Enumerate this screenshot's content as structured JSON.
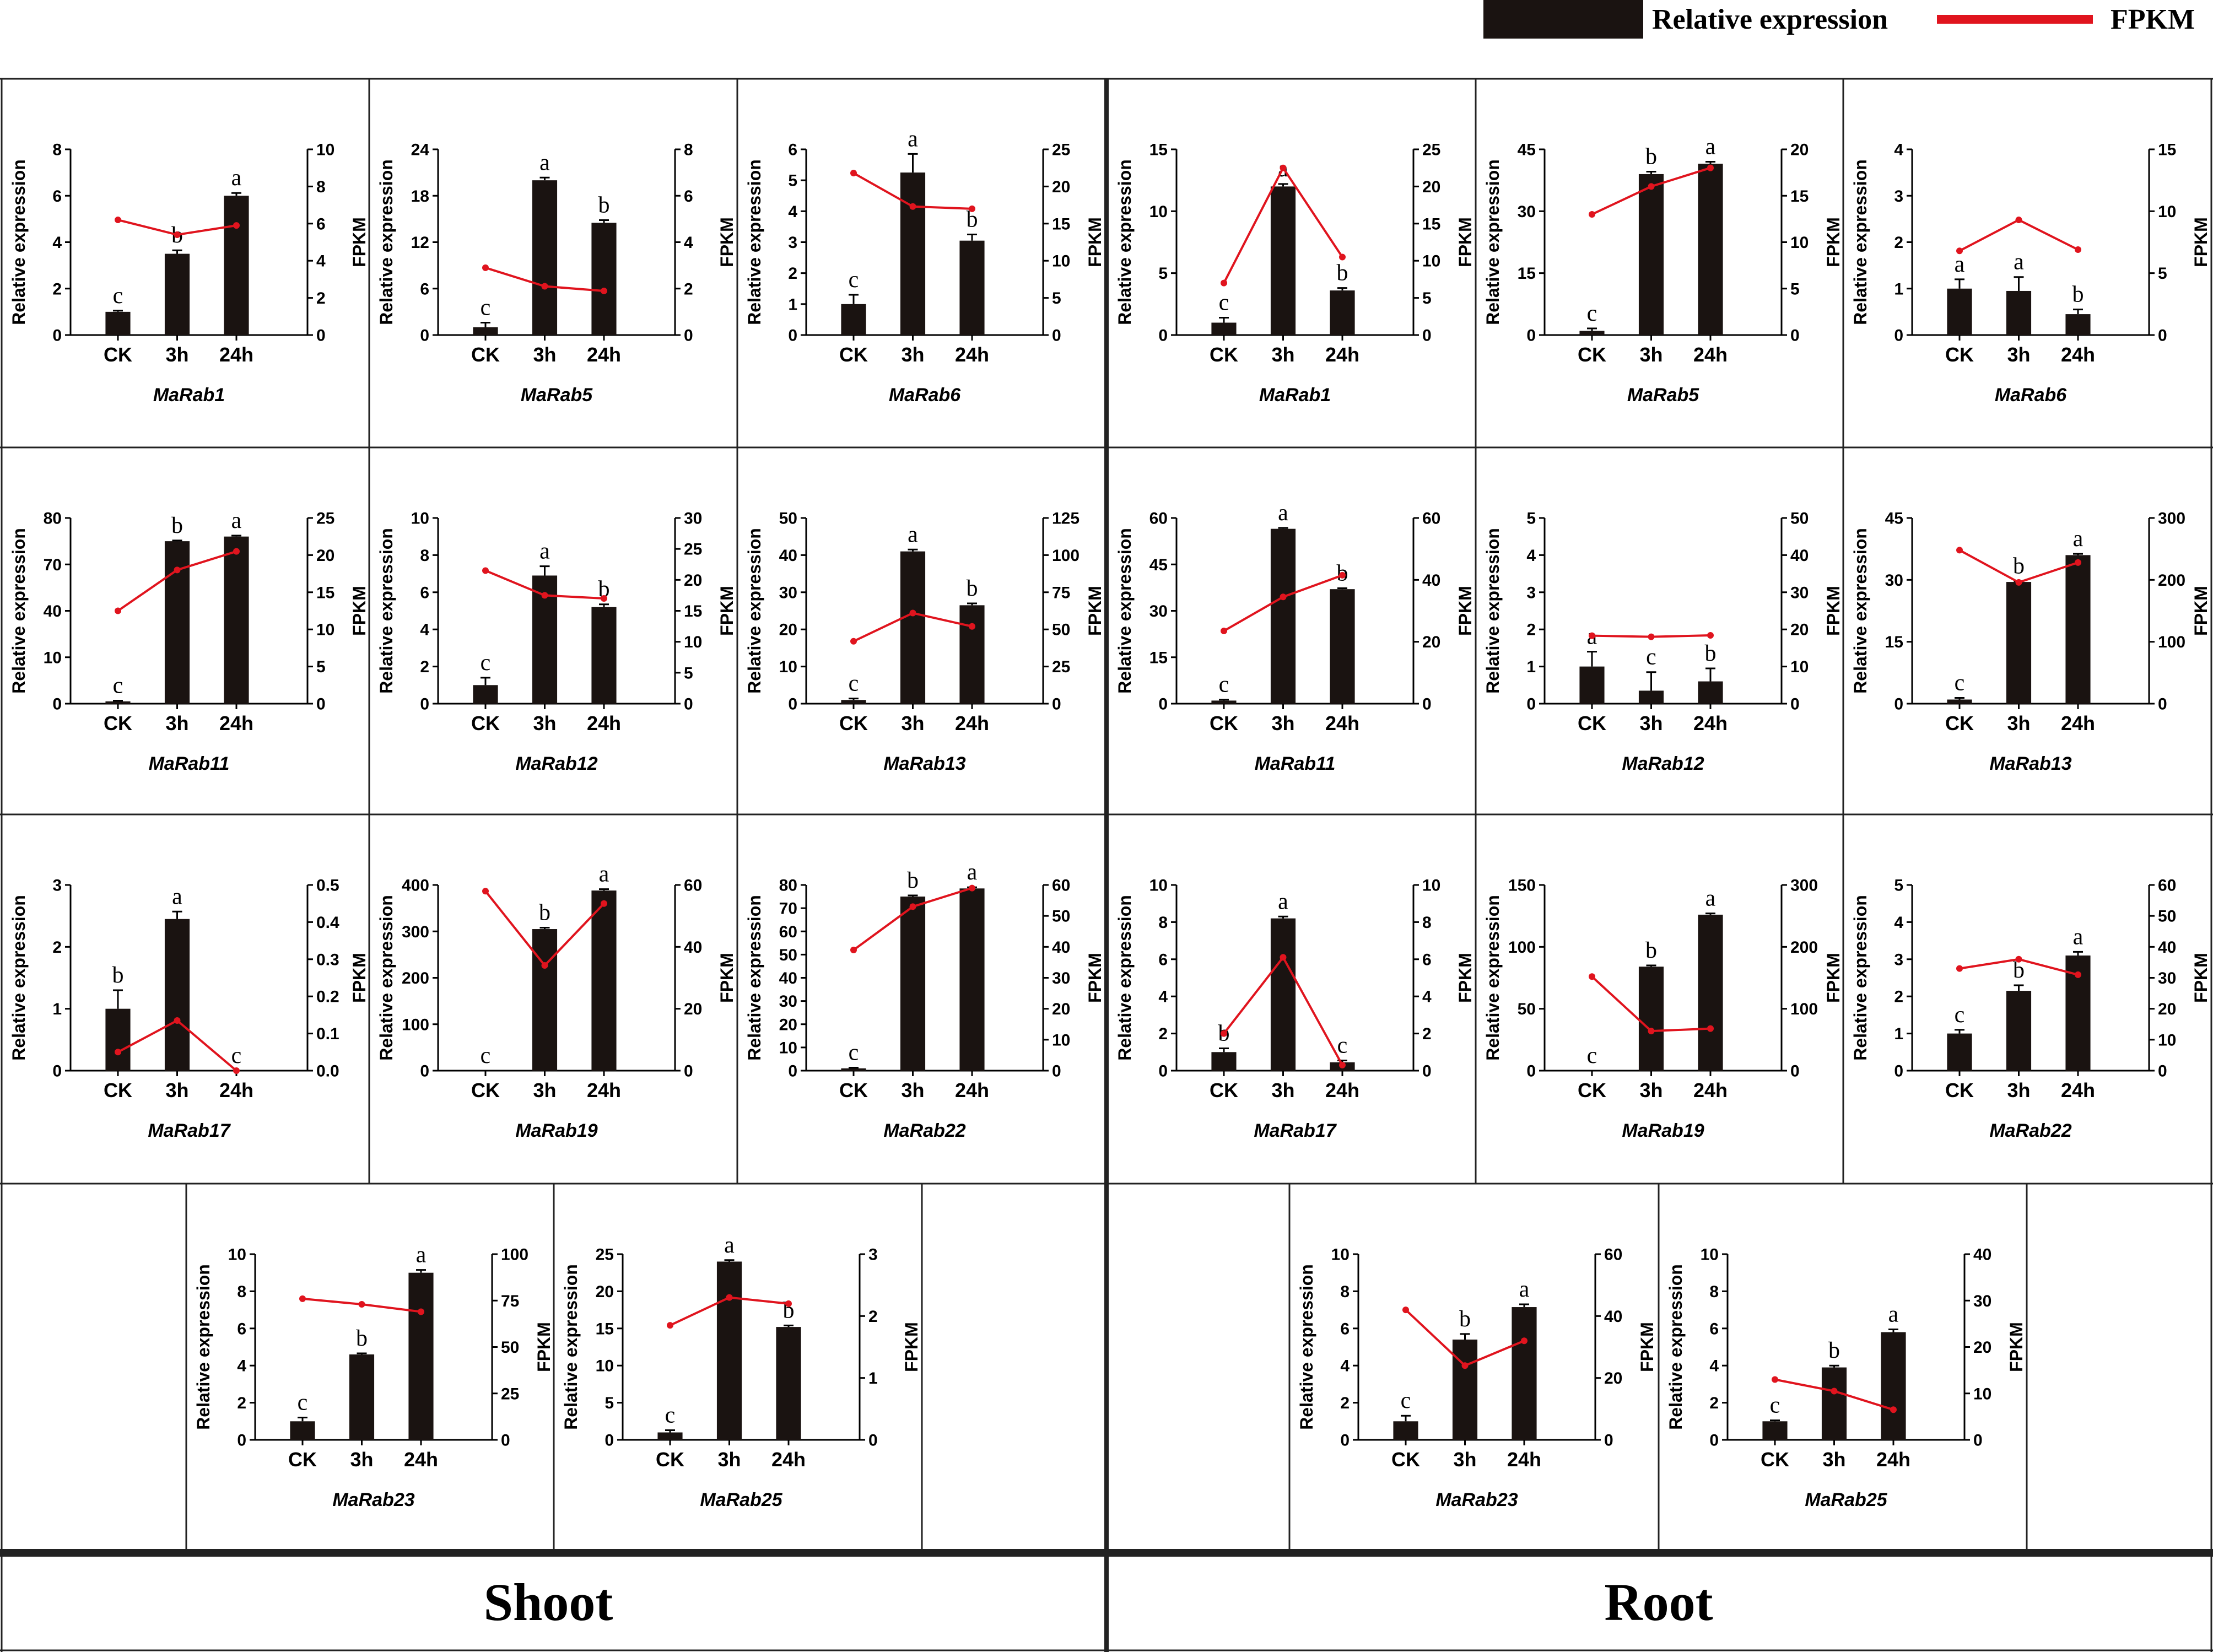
{
  "legend": {
    "relative_expression": "Relative expression",
    "fpkm": "FPKM",
    "bar_color": "#1a1311",
    "line_color": "#e0141e"
  },
  "sections": {
    "shoot": "Shoot",
    "root": "Root"
  },
  "chart_data": [
    {
      "id": "s1",
      "gene": "MaRab1",
      "tissue": "Shoot",
      "type": "bar",
      "line": "FPKM",
      "categories": [
        "CK",
        "3h",
        "24h"
      ],
      "values": [
        1.0,
        3.5,
        6.0
      ],
      "errors": [
        0.05,
        0.15,
        0.12
      ],
      "letters": [
        "c",
        "b",
        "a"
      ],
      "fpkm": [
        6.2,
        5.4,
        5.9
      ],
      "ylim": [
        0,
        8
      ],
      "yticks": [
        "0",
        "2",
        "4",
        "6",
        "8"
      ],
      "y2lim": [
        0,
        10
      ],
      "y2ticks": [
        "0",
        "2",
        "4",
        "6",
        "8",
        "10"
      ],
      "ylabel": "Relative expression",
      "y2label": "FPKM"
    },
    {
      "id": "s5",
      "gene": "MaRab5",
      "tissue": "Shoot",
      "type": "bar",
      "line": "FPKM",
      "categories": [
        "CK",
        "3h",
        "24h"
      ],
      "values": [
        1.0,
        20.0,
        14.5
      ],
      "errors": [
        0.6,
        0.35,
        0.35
      ],
      "letters": [
        "c",
        "a",
        "b"
      ],
      "fpkm": [
        2.9,
        2.1,
        1.9
      ],
      "ylim": [
        0,
        24
      ],
      "yticks": [
        "0",
        "6",
        "12",
        "18",
        "24"
      ],
      "y2lim": [
        0,
        8
      ],
      "y2ticks": [
        "0",
        "2",
        "4",
        "6",
        "8"
      ],
      "ylabel": "Relative expression",
      "y2label": "FPKM"
    },
    {
      "id": "s6",
      "gene": "MaRab6",
      "tissue": "Shoot",
      "type": "bar",
      "line": "FPKM",
      "categories": [
        "CK",
        "3h",
        "24h"
      ],
      "values": [
        1.0,
        5.25,
        3.05
      ],
      "errors": [
        0.3,
        0.6,
        0.2
      ],
      "letters": [
        "c",
        "a",
        "b"
      ],
      "fpkm": [
        21.8,
        17.3,
        17.0
      ],
      "ylim": [
        0,
        6
      ],
      "yticks": [
        "0",
        "1",
        "2",
        "3",
        "4",
        "5",
        "6"
      ],
      "y2lim": [
        0,
        25
      ],
      "y2ticks": [
        "0",
        "5",
        "10",
        "15",
        "20",
        "25"
      ],
      "ylabel": "Relative expression",
      "y2label": "FPKM"
    },
    {
      "id": "s11",
      "gene": "MaRab11",
      "tissue": "Shoot",
      "type": "bar",
      "line": "FPKM",
      "categories": [
        "CK",
        "3h",
        "24h"
      ],
      "values": [
        1.0,
        70.0,
        72.0
      ],
      "errors": [
        0.3,
        0.3,
        0.4
      ],
      "letters": [
        "c",
        "b",
        "a"
      ],
      "fpkm": [
        12.5,
        18.0,
        20.5
      ],
      "ylim": [
        0,
        80
      ],
      "yticks": [
        "0",
        "10",
        "40",
        "70",
        "80"
      ],
      "y2lim": [
        0,
        25
      ],
      "y2ticks": [
        "0",
        "5",
        "10",
        "15",
        "20",
        "25"
      ],
      "ylabel": "Relative expression",
      "y2label": "FPKM"
    },
    {
      "id": "s12",
      "gene": "MaRab12",
      "tissue": "Shoot",
      "type": "bar",
      "line": "FPKM",
      "categories": [
        "CK",
        "3h",
        "24h"
      ],
      "values": [
        1.0,
        6.9,
        5.2
      ],
      "errors": [
        0.4,
        0.5,
        0.15
      ],
      "letters": [
        "c",
        "a",
        "b"
      ],
      "fpkm": [
        21.5,
        17.5,
        17.0
      ],
      "ylim": [
        0,
        10
      ],
      "yticks": [
        "0",
        "2",
        "4",
        "6",
        "8",
        "10"
      ],
      "y2lim": [
        0,
        30
      ],
      "y2ticks": [
        "0",
        "5",
        "10",
        "15",
        "20",
        "25",
        "30"
      ],
      "ylabel": "Relative expression",
      "y2label": "FPKM"
    },
    {
      "id": "s13",
      "gene": "MaRab13",
      "tissue": "Shoot",
      "type": "bar",
      "line": "FPKM",
      "categories": [
        "CK",
        "3h",
        "24h"
      ],
      "values": [
        1.0,
        41.0,
        26.5
      ],
      "errors": [
        0.4,
        0.5,
        0.5
      ],
      "letters": [
        "c",
        "a",
        "b"
      ],
      "fpkm": [
        42,
        61,
        52
      ],
      "ylim": [
        0,
        50
      ],
      "yticks": [
        "0",
        "10",
        "20",
        "30",
        "40",
        "50"
      ],
      "y2lim": [
        0,
        125
      ],
      "y2ticks": [
        "0",
        "25",
        "50",
        "75",
        "100",
        "125"
      ],
      "ylabel": "Relative expression",
      "y2label": "FPKM"
    },
    {
      "id": "s17",
      "gene": "MaRab17",
      "tissue": "Shoot",
      "type": "bar",
      "line": "FPKM",
      "categories": [
        "CK",
        "3h",
        "24h"
      ],
      "values": [
        1.0,
        2.45,
        0.0
      ],
      "errors": [
        0.3,
        0.12,
        0.0
      ],
      "letters": [
        "b",
        "a",
        "c"
      ],
      "fpkm": [
        0.05,
        0.135,
        0.0
      ],
      "ylim": [
        0,
        3
      ],
      "yticks": [
        "0",
        "1",
        "2",
        "3"
      ],
      "y2lim": [
        0,
        0.5
      ],
      "y2ticks": [
        "0.0",
        "0.1",
        "0.2",
        "0.3",
        "0.4",
        "0.5"
      ],
      "ylabel": "Relative expression",
      "y2label": "FPKM"
    },
    {
      "id": "s19",
      "gene": "MaRab19",
      "tissue": "Shoot",
      "type": "bar",
      "line": "FPKM",
      "categories": [
        "CK",
        "3h",
        "24h"
      ],
      "values": [
        0.0,
        305,
        388
      ],
      "errors": [
        0,
        3,
        3
      ],
      "letters": [
        "c",
        "b",
        "a"
      ],
      "fpkm": [
        58,
        34,
        54
      ],
      "ylim": [
        0,
        400
      ],
      "yticks": [
        "0",
        "100",
        "200",
        "300",
        "400"
      ],
      "y2lim": [
        0,
        60
      ],
      "y2ticks": [
        "0",
        "20",
        "40",
        "60"
      ],
      "ylabel": "Relative expression",
      "y2label": "FPKM"
    },
    {
      "id": "s22",
      "gene": "MaRab22",
      "tissue": "Shoot",
      "type": "bar",
      "line": "FPKM",
      "categories": [
        "CK",
        "3h",
        "24h"
      ],
      "values": [
        1.0,
        75.0,
        78.5
      ],
      "errors": [
        0.3,
        0.5,
        0.5
      ],
      "letters": [
        "c",
        "b",
        "a"
      ],
      "fpkm": [
        39,
        53,
        59
      ],
      "ylim": [
        0,
        80
      ],
      "yticks": [
        "0",
        "10",
        "20",
        "30",
        "40",
        "50",
        "60",
        "70",
        "80"
      ],
      "y2lim": [
        0,
        60
      ],
      "y2ticks": [
        "0",
        "10",
        "20",
        "30",
        "40",
        "50",
        "60"
      ],
      "ylabel": "Relative expression",
      "y2label": "FPKM"
    },
    {
      "id": "s23",
      "gene": "MaRab23",
      "tissue": "Shoot",
      "type": "bar",
      "line": "FPKM",
      "categories": [
        "CK",
        "3h",
        "24h"
      ],
      "values": [
        1.0,
        4.6,
        9.0
      ],
      "errors": [
        0.2,
        0.06,
        0.15
      ],
      "letters": [
        "c",
        "b",
        "a"
      ],
      "fpkm": [
        76,
        73,
        69
      ],
      "ylim": [
        0,
        10
      ],
      "yticks": [
        "0",
        "2",
        "4",
        "6",
        "8",
        "10"
      ],
      "y2lim": [
        0,
        100
      ],
      "y2ticks": [
        "0",
        "25",
        "50",
        "75",
        "100"
      ],
      "ylabel": "Relative expression",
      "y2label": "FPKM"
    },
    {
      "id": "s25",
      "gene": "MaRab25",
      "tissue": "Shoot",
      "type": "bar",
      "line": "FPKM",
      "categories": [
        "CK",
        "3h",
        "24h"
      ],
      "values": [
        1.0,
        24.0,
        15.2
      ],
      "errors": [
        0.3,
        0.2,
        0.2
      ],
      "letters": [
        "c",
        "a",
        "b"
      ],
      "fpkm": [
        1.85,
        2.3,
        2.2
      ],
      "ylim": [
        0,
        25
      ],
      "yticks": [
        "0",
        "5",
        "10",
        "15",
        "20",
        "25"
      ],
      "y2lim": [
        0,
        3
      ],
      "y2ticks": [
        "0",
        "1",
        "2",
        "3"
      ],
      "ylabel": "Relative expression",
      "y2label": "FPKM"
    },
    {
      "id": "r1",
      "gene": "MaRab1",
      "tissue": "Root",
      "type": "bar",
      "line": "FPKM",
      "categories": [
        "CK",
        "3h",
        "24h"
      ],
      "values": [
        1.0,
        12.0,
        3.6
      ],
      "errors": [
        0.4,
        0.2,
        0.2
      ],
      "letters": [
        "c",
        "a",
        "b"
      ],
      "fpkm": [
        7,
        22.5,
        10.5
      ],
      "ylim": [
        0,
        15
      ],
      "yticks": [
        "0",
        "5",
        "10",
        "15"
      ],
      "y2lim": [
        0,
        25
      ],
      "y2ticks": [
        "0",
        "5",
        "10",
        "15",
        "20",
        "25"
      ],
      "ylabel": "Relative expression",
      "y2label": "FPKM"
    },
    {
      "id": "r5",
      "gene": "MaRab5",
      "tissue": "Root",
      "type": "bar",
      "line": "FPKM",
      "categories": [
        "CK",
        "3h",
        "24h"
      ],
      "values": [
        1.0,
        39.0,
        41.5
      ],
      "errors": [
        0.6,
        0.6,
        0.5
      ],
      "letters": [
        "c",
        "b",
        "a"
      ],
      "fpkm": [
        13,
        16,
        18
      ],
      "ylim": [
        0,
        45
      ],
      "yticks": [
        "0",
        "15",
        "30",
        "45"
      ],
      "y2lim": [
        0,
        20
      ],
      "y2ticks": [
        "0",
        "5",
        "10",
        "15",
        "20"
      ],
      "ylabel": "Relative expression",
      "y2label": "FPKM"
    },
    {
      "id": "r6",
      "gene": "MaRab6",
      "tissue": "Root",
      "type": "bar",
      "line": "FPKM",
      "categories": [
        "CK",
        "3h",
        "24h"
      ],
      "values": [
        1.0,
        0.95,
        0.45
      ],
      "errors": [
        0.2,
        0.3,
        0.1
      ],
      "letters": [
        "a",
        "a",
        "b"
      ],
      "fpkm": [
        6.8,
        9.3,
        6.9
      ],
      "ylim": [
        0,
        4
      ],
      "yticks": [
        "0",
        "1",
        "2",
        "3",
        "4"
      ],
      "y2lim": [
        0,
        15
      ],
      "y2ticks": [
        "0",
        "5",
        "10",
        "15"
      ],
      "ylabel": "Relative expression",
      "y2label": "FPKM"
    },
    {
      "id": "r11",
      "gene": "MaRab11",
      "tissue": "Root",
      "type": "bar",
      "line": "FPKM",
      "categories": [
        "CK",
        "3h",
        "24h"
      ],
      "values": [
        1.0,
        56.5,
        37.0
      ],
      "errors": [
        0.3,
        0.3,
        0.3
      ],
      "letters": [
        "c",
        "a",
        "b"
      ],
      "fpkm": [
        23.5,
        34.5,
        41.5
      ],
      "ylim": [
        0,
        60
      ],
      "yticks": [
        "0",
        "15",
        "30",
        "45",
        "60"
      ],
      "y2lim": [
        0,
        60
      ],
      "y2ticks": [
        "0",
        "20",
        "40",
        "60"
      ],
      "ylabel": "Relative expression",
      "y2label": "FPKM"
    },
    {
      "id": "r12",
      "gene": "MaRab12",
      "tissue": "Root",
      "type": "bar",
      "line": "FPKM",
      "categories": [
        "CK",
        "3h",
        "24h"
      ],
      "values": [
        1.0,
        0.35,
        0.6
      ],
      "errors": [
        0.4,
        0.5,
        0.35
      ],
      "letters": [
        "a",
        "c",
        "b"
      ],
      "fpkm": [
        18.3,
        18.0,
        18.4
      ],
      "ylim": [
        0,
        5
      ],
      "yticks": [
        "0",
        "1",
        "2",
        "3",
        "4",
        "5"
      ],
      "y2lim": [
        0,
        50
      ],
      "y2ticks": [
        "0",
        "10",
        "20",
        "30",
        "40",
        "50"
      ],
      "ylabel": "Relative expression",
      "y2label": "FPKM"
    },
    {
      "id": "r13",
      "gene": "MaRab13",
      "tissue": "Root",
      "type": "bar",
      "line": "FPKM",
      "categories": [
        "CK",
        "3h",
        "24h"
      ],
      "values": [
        1.0,
        29.5,
        36.0
      ],
      "errors": [
        0.4,
        0.2,
        0.3
      ],
      "letters": [
        "c",
        "b",
        "a"
      ],
      "fpkm": [
        248,
        196,
        228
      ],
      "ylim": [
        0,
        45
      ],
      "yticks": [
        "0",
        "15",
        "30",
        "45"
      ],
      "y2lim": [
        0,
        300
      ],
      "y2ticks": [
        "0",
        "100",
        "200",
        "300"
      ],
      "ylabel": "Relative expression",
      "y2label": "FPKM"
    },
    {
      "id": "r17",
      "gene": "MaRab17",
      "tissue": "Root",
      "type": "bar",
      "line": "FPKM",
      "categories": [
        "CK",
        "3h",
        "24h"
      ],
      "values": [
        1.0,
        8.2,
        0.45
      ],
      "errors": [
        0.2,
        0.1,
        0.1
      ],
      "letters": [
        "b",
        "a",
        "c"
      ],
      "fpkm": [
        2.0,
        6.1,
        0.3
      ],
      "ylim": [
        0,
        10
      ],
      "yticks": [
        "0",
        "2",
        "4",
        "6",
        "8",
        "10"
      ],
      "y2lim": [
        0,
        10
      ],
      "y2ticks": [
        "0",
        "2",
        "4",
        "6",
        "8",
        "10"
      ],
      "ylabel": "Relative expression",
      "y2label": "FPKM"
    },
    {
      "id": "r19",
      "gene": "MaRab19",
      "tissue": "Root",
      "type": "bar",
      "line": "FPKM",
      "categories": [
        "CK",
        "3h",
        "24h"
      ],
      "values": [
        0.0,
        84,
        126
      ],
      "errors": [
        0,
        1,
        1
      ],
      "letters": [
        "c",
        "b",
        "a"
      ],
      "fpkm": [
        152,
        64,
        68
      ],
      "ylim": [
        0,
        150
      ],
      "yticks": [
        "0",
        "50",
        "100",
        "150"
      ],
      "y2lim": [
        0,
        300
      ],
      "y2ticks": [
        "0",
        "100",
        "200",
        "300"
      ],
      "ylabel": "Relative expression",
      "y2label": "FPKM"
    },
    {
      "id": "r22",
      "gene": "MaRab22",
      "tissue": "Root",
      "type": "bar",
      "line": "FPKM",
      "categories": [
        "CK",
        "3h",
        "24h"
      ],
      "values": [
        1.0,
        2.15,
        3.1
      ],
      "errors": [
        0.1,
        0.15,
        0.1
      ],
      "letters": [
        "c",
        "b",
        "a"
      ],
      "fpkm": [
        33,
        36,
        31
      ],
      "ylim": [
        0,
        5
      ],
      "yticks": [
        "0",
        "1",
        "2",
        "3",
        "4",
        "5"
      ],
      "y2lim": [
        0,
        60
      ],
      "y2ticks": [
        "0",
        "10",
        "20",
        "30",
        "40",
        "50",
        "60"
      ],
      "ylabel": "Relative expression",
      "y2label": "FPKM"
    },
    {
      "id": "r23",
      "gene": "MaRab23",
      "tissue": "Root",
      "type": "bar",
      "line": "FPKM",
      "categories": [
        "CK",
        "3h",
        "24h"
      ],
      "values": [
        1.0,
        5.4,
        7.15
      ],
      "errors": [
        0.3,
        0.3,
        0.15
      ],
      "letters": [
        "c",
        "b",
        "a"
      ],
      "fpkm": [
        42,
        24,
        32
      ],
      "ylim": [
        0,
        10
      ],
      "yticks": [
        "0",
        "2",
        "4",
        "6",
        "8",
        "10"
      ],
      "y2lim": [
        0,
        60
      ],
      "y2ticks": [
        "0",
        "20",
        "40",
        "60"
      ],
      "ylabel": "Relative expression",
      "y2label": "FPKM"
    },
    {
      "id": "r25",
      "gene": "MaRab25",
      "tissue": "Root",
      "type": "bar",
      "line": "FPKM",
      "categories": [
        "CK",
        "3h",
        "24h"
      ],
      "values": [
        1.0,
        3.9,
        5.8
      ],
      "errors": [
        0.05,
        0.1,
        0.15
      ],
      "letters": [
        "c",
        "b",
        "a"
      ],
      "fpkm": [
        13,
        10.5,
        6.5
      ],
      "ylim": [
        0,
        10
      ],
      "yticks": [
        "0",
        "2",
        "4",
        "6",
        "8",
        "10"
      ],
      "y2lim": [
        0,
        40
      ],
      "y2ticks": [
        "0",
        "10",
        "20",
        "30",
        "40"
      ],
      "ylabel": "Relative expression",
      "y2label": "FPKM"
    }
  ]
}
